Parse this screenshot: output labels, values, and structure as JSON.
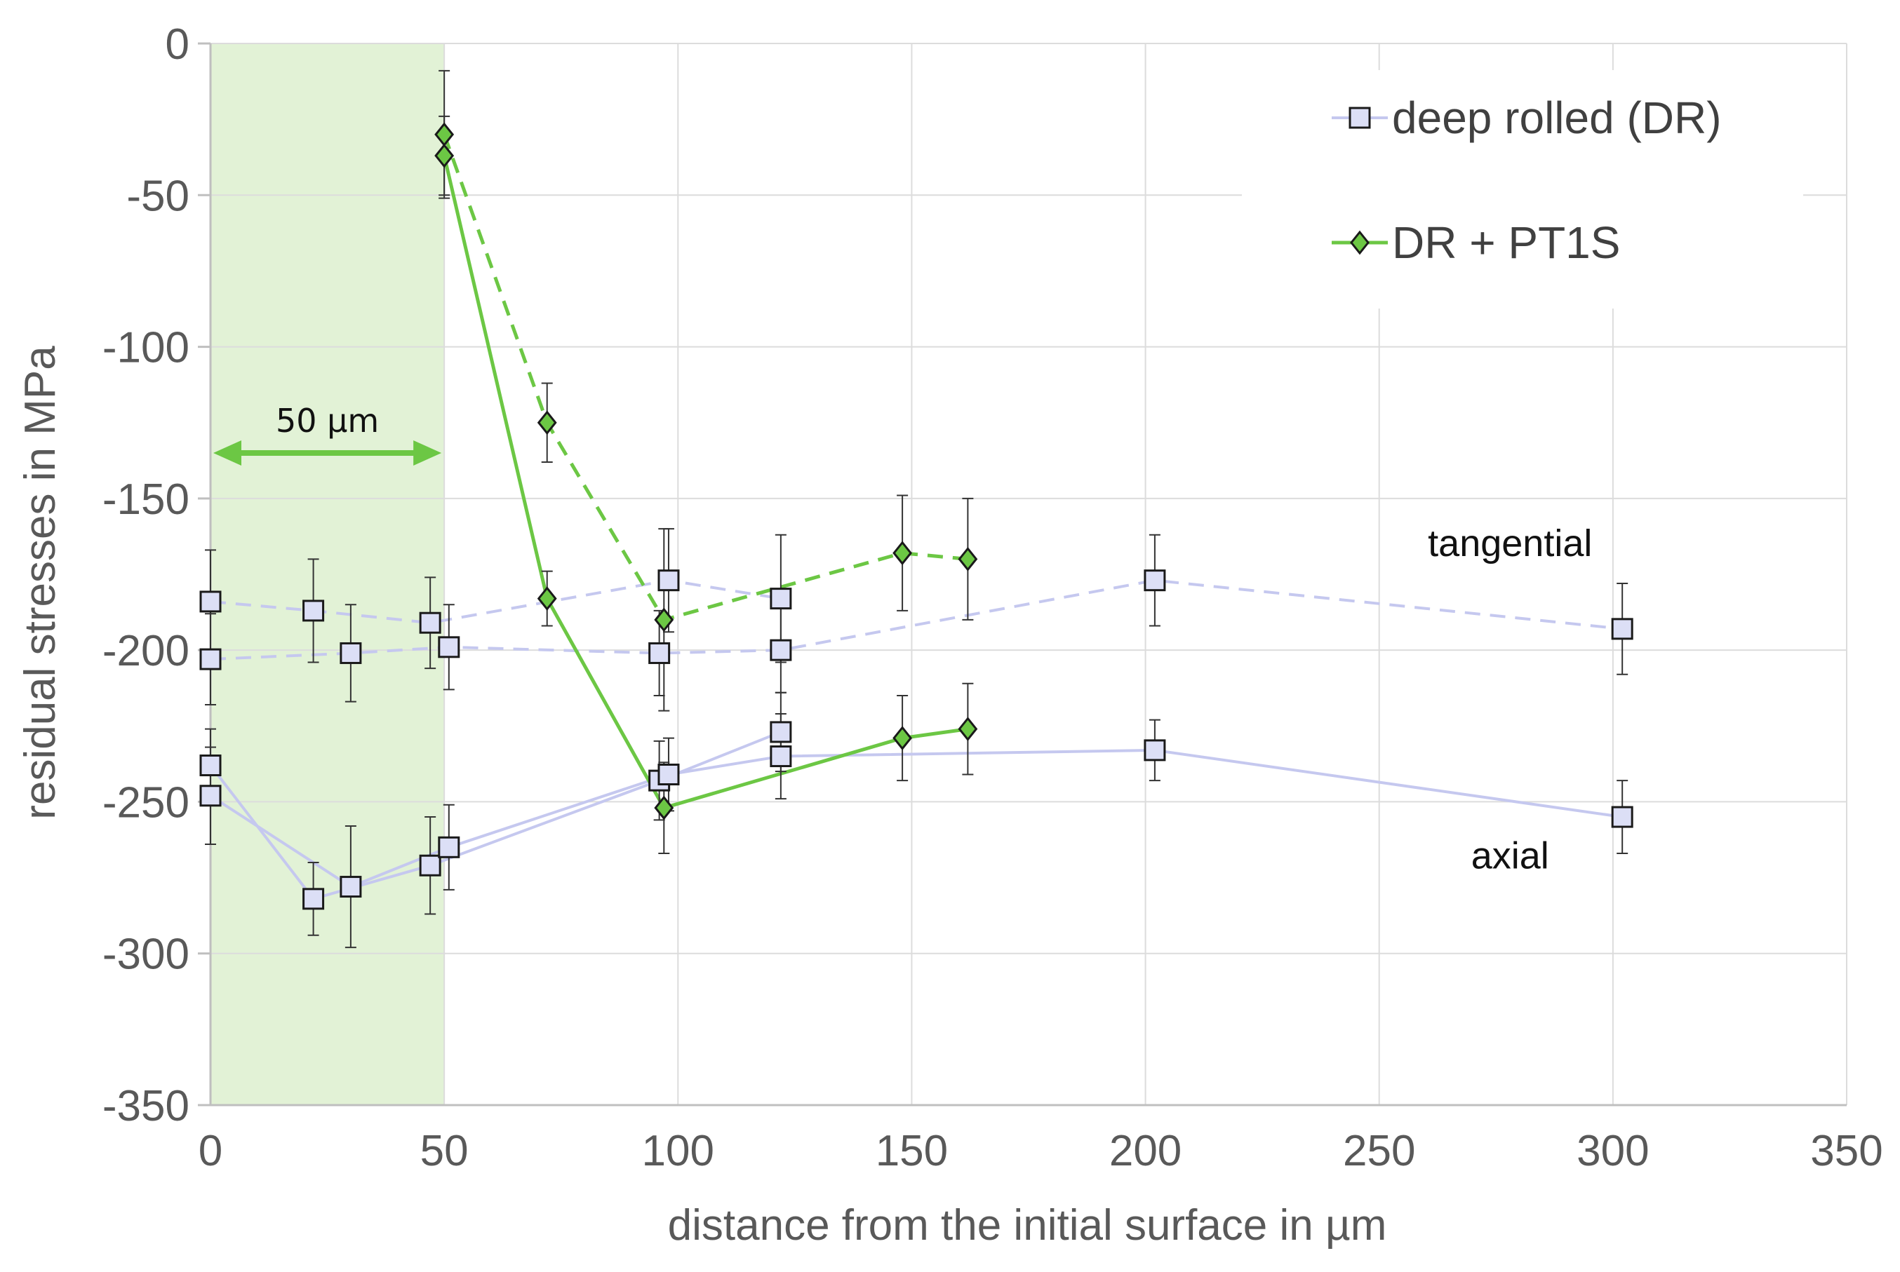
{
  "chart_data": {
    "type": "scatter",
    "title": "",
    "xlabel": "distance from the initial surface in µm",
    "ylabel": "residual stresses in MPa",
    "xlim": [
      0,
      350
    ],
    "ylim": [
      -350,
      0
    ],
    "xticks": [
      0,
      50,
      100,
      150,
      200,
      250,
      300,
      350
    ],
    "yticks": [
      0,
      -50,
      -100,
      -150,
      -200,
      -250,
      -300,
      -350
    ],
    "xtick_labels": [
      "0",
      "50",
      "100",
      "150",
      "200",
      "250",
      "300",
      "350"
    ],
    "ytick_labels": [
      "0",
      "-50",
      "-100",
      "-150",
      "-200",
      "-250",
      "-300",
      "-350"
    ],
    "grid": true,
    "legend_position": "top-right",
    "shaded_region": {
      "x_from": 0,
      "x_to": 50,
      "label": "50 µm",
      "color": "#e2f2d6"
    },
    "annotations": [
      {
        "text": "tangential",
        "x": 278,
        "y": -169
      },
      {
        "text": "axial",
        "x": 278,
        "y": -272
      }
    ],
    "series": [
      {
        "name": "deep rolled (DR)",
        "legend": true,
        "marker": "square",
        "line": "dashed",
        "color": "#c5c8ef",
        "marker_fill": "#dcdff6",
        "group": "tangential",
        "points": [
          {
            "x": 0,
            "y": -184,
            "err": 17
          },
          {
            "x": 22,
            "y": -187,
            "err": 17
          },
          {
            "x": 47,
            "y": -191,
            "err": 15
          },
          {
            "x": 98,
            "y": -177,
            "err": 17
          },
          {
            "x": 122,
            "y": -183,
            "err": 21
          }
        ]
      },
      {
        "name": "deep rolled (DR) 2",
        "legend": false,
        "marker": "square",
        "line": "dashed",
        "color": "#c5c8ef",
        "marker_fill": "#dcdff6",
        "group": "tangential",
        "points": [
          {
            "x": 0,
            "y": -203,
            "err": 15
          },
          {
            "x": 30,
            "y": -201,
            "err": 16
          },
          {
            "x": 51,
            "y": -199,
            "err": 14
          },
          {
            "x": 96,
            "y": -201,
            "err": 14
          },
          {
            "x": 122,
            "y": -200,
            "err": 14
          },
          {
            "x": 202,
            "y": -177,
            "err": 15
          },
          {
            "x": 302,
            "y": -193,
            "err": 15
          }
        ]
      },
      {
        "name": "deep rolled (DR) 3",
        "legend": false,
        "marker": "square",
        "line": "solid",
        "color": "#c5c8ef",
        "marker_fill": "#dcdff6",
        "group": "axial",
        "points": [
          {
            "x": 0,
            "y": -238,
            "err": 12
          },
          {
            "x": 22,
            "y": -282,
            "err": 12
          },
          {
            "x": 47,
            "y": -271,
            "err": 16
          },
          {
            "x": 96,
            "y": -243,
            "err": 13
          },
          {
            "x": 122,
            "y": -227,
            "err": 13
          }
        ]
      },
      {
        "name": "deep rolled (DR) 4",
        "legend": false,
        "marker": "square",
        "line": "solid",
        "color": "#c5c8ef",
        "marker_fill": "#dcdff6",
        "group": "axial",
        "points": [
          {
            "x": 0,
            "y": -248,
            "err": 16
          },
          {
            "x": 30,
            "y": -278,
            "err": 20
          },
          {
            "x": 51,
            "y": -265,
            "err": 14
          },
          {
            "x": 98,
            "y": -241,
            "err": 12
          },
          {
            "x": 122,
            "y": -235,
            "err": 14
          },
          {
            "x": 202,
            "y": -233,
            "err": 10
          },
          {
            "x": 302,
            "y": -255,
            "err": 12
          }
        ]
      },
      {
        "name": "DR + PT1S",
        "legend": true,
        "marker": "diamond",
        "line": "dashed",
        "color": "#6cc744",
        "marker_fill": "#6cc744",
        "group": "tangential",
        "points": [
          {
            "x": 50,
            "y": -30,
            "err": 21
          },
          {
            "x": 72,
            "y": -125,
            "err": 13
          },
          {
            "x": 97,
            "y": -190,
            "err": 30
          },
          {
            "x": 148,
            "y": -168,
            "err": 19
          },
          {
            "x": 162,
            "y": -170,
            "err": 20
          }
        ]
      },
      {
        "name": "DR + PT1S 2",
        "legend": false,
        "marker": "diamond",
        "line": "solid",
        "color": "#6cc744",
        "marker_fill": "#6cc744",
        "group": "axial",
        "points": [
          {
            "x": 50,
            "y": -37,
            "err": 13
          },
          {
            "x": 72,
            "y": -183,
            "err": 9
          },
          {
            "x": 97,
            "y": -252,
            "err": 15
          },
          {
            "x": 148,
            "y": -229,
            "err": 14
          },
          {
            "x": 162,
            "y": -226,
            "err": 15
          }
        ]
      }
    ]
  }
}
